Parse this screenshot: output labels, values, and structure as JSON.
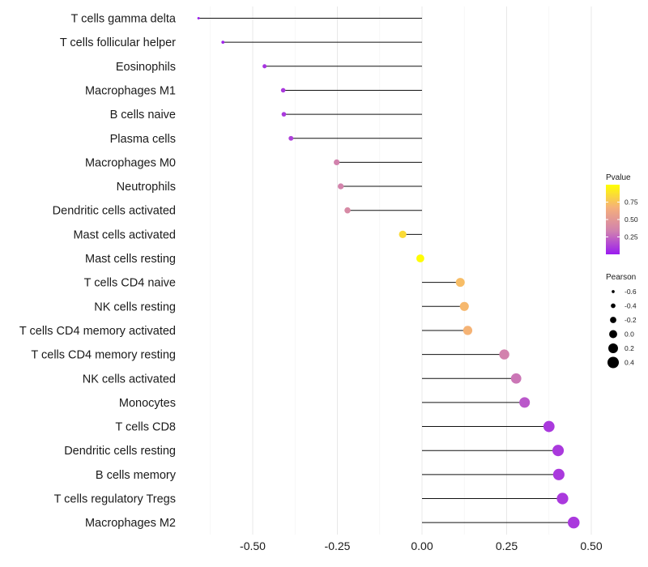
{
  "chart_data": {
    "type": "lollipop",
    "title": "",
    "xlabel": "",
    "ylabel": "",
    "xlim": [
      -0.62,
      0.54
    ],
    "x_ticks": [
      -0.5,
      -0.25,
      0.0,
      0.25,
      0.5
    ],
    "x_tick_labels": [
      "-0.50",
      "-0.25",
      "0.00",
      "0.25",
      "0.50"
    ],
    "grid": "vertical",
    "color_stops": [
      "#9A1BF0",
      "#D080B0",
      "#F5B07A",
      "#FFFF00"
    ],
    "categories": [
      "T cells gamma delta",
      "T cells follicular helper",
      "Eosinophils",
      "Macrophages M1",
      "B cells naive",
      "Plasma cells",
      "Macrophages M0",
      "Neutrophils",
      "Dendritic cells activated",
      "Mast cells activated",
      "Mast cells resting",
      "T cells CD4 naive",
      "NK cells resting",
      "T cells CD4 memory activated",
      "T cells CD4 memory resting",
      "NK cells activated",
      "Monocytes",
      "T cells CD8",
      "Dendritic cells resting",
      "B cells memory",
      "T cells regulatory  Tregs ",
      "Macrophages M2"
    ],
    "pearson": [
      -0.66,
      -0.588,
      -0.465,
      -0.41,
      -0.408,
      -0.387,
      -0.252,
      -0.24,
      -0.22,
      -0.057,
      -0.005,
      0.113,
      0.125,
      0.135,
      0.243,
      0.278,
      0.303,
      0.375,
      0.402,
      0.404,
      0.415,
      0.448
    ],
    "pvalue": [
      0.02,
      0.03,
      0.08,
      0.1,
      0.1,
      0.12,
      0.35,
      0.36,
      0.4,
      0.85,
      0.99,
      0.72,
      0.7,
      0.68,
      0.35,
      0.3,
      0.2,
      0.1,
      0.1,
      0.1,
      0.1,
      0.1
    ],
    "legend_color": {
      "title": "Pvalue",
      "ticks": [
        0.25,
        0.5,
        0.75
      ],
      "tick_labels": [
        "0.25",
        "0.50",
        "0.75"
      ],
      "range": [
        0.0,
        1.0
      ],
      "placement": "right"
    },
    "legend_size": {
      "title": "Pearson",
      "values": [
        -0.6,
        -0.4,
        -0.2,
        0.0,
        0.2,
        0.4
      ],
      "labels": [
        "-0.6",
        "-0.4",
        "-0.2",
        "0.0",
        "0.2",
        "0.4"
      ],
      "placement": "right"
    }
  }
}
